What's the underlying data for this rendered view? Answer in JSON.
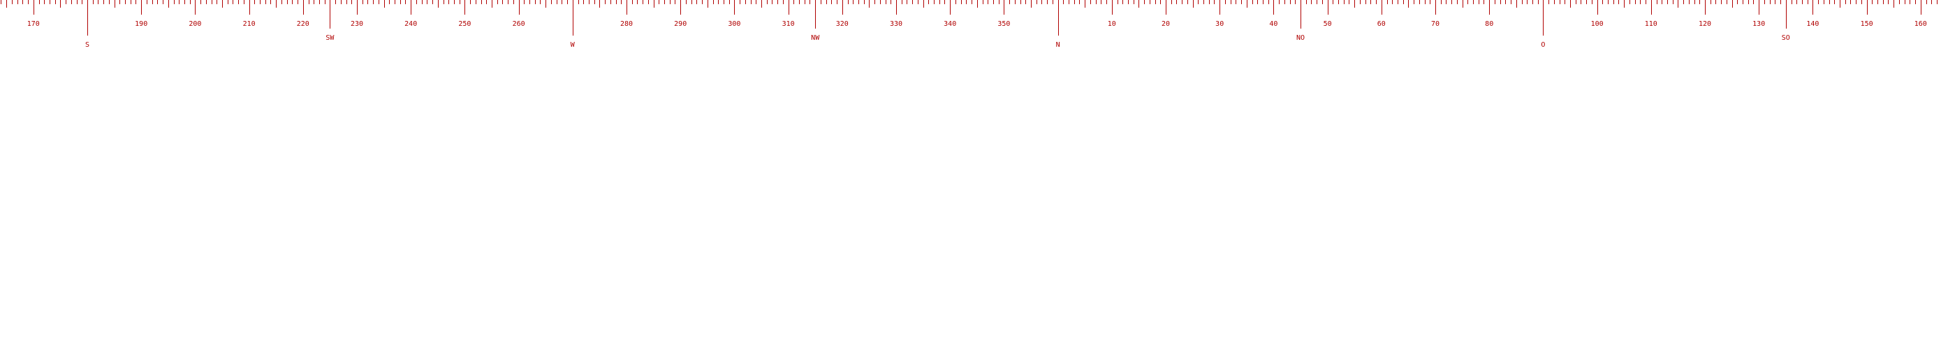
{
  "compass": {
    "color": "#b00000",
    "visible_range_degrees": [
      164,
      163
    ],
    "degree_labels": [
      170,
      190,
      200,
      210,
      220,
      230,
      240,
      250,
      260,
      280,
      290,
      300,
      310,
      320,
      330,
      340,
      350,
      10,
      20,
      30,
      40,
      50,
      60,
      70,
      80,
      100,
      110,
      120,
      130,
      140,
      150,
      160
    ],
    "cardinal_points": [
      {
        "deg": 180,
        "label": "S"
      },
      {
        "deg": 270,
        "label": "W"
      },
      {
        "deg": 0,
        "label": "N"
      },
      {
        "deg": 90,
        "label": "O"
      }
    ],
    "intercardinal_points": [
      {
        "deg": 225,
        "label": "SW"
      },
      {
        "deg": 315,
        "label": "NW"
      },
      {
        "deg": 45,
        "label": "NO"
      },
      {
        "deg": 135,
        "label": "SO"
      }
    ]
  }
}
